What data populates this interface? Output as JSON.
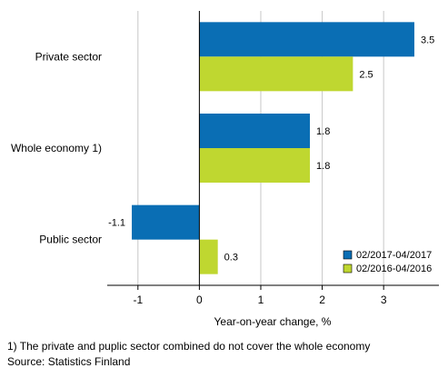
{
  "chart_data": {
    "type": "bar",
    "orientation": "horizontal",
    "categories": [
      "Private sector",
      "Whole economy 1)",
      "Public sector"
    ],
    "series": [
      {
        "name": "02/2017-04/2017",
        "color": "#0a6eb4",
        "values": [
          3.5,
          1.8,
          -1.1
        ]
      },
      {
        "name": "02/2016-04/2016",
        "color": "#bfd730",
        "values": [
          2.5,
          1.8,
          0.3
        ]
      }
    ],
    "data_labels": [
      [
        "3.5",
        "1.8",
        "-1.1"
      ],
      [
        "2.5",
        "1.8",
        "0.3"
      ]
    ],
    "xlabel": "Year-on-year change, %",
    "xlim": [
      -1.5,
      3.9
    ],
    "xticks": [
      -1,
      0,
      1,
      2,
      3
    ],
    "grid": true,
    "legend": "bottom-right"
  },
  "footnotes": [
    "1) The private and puplic sector combined do not cover the whole economy",
    "Source: Statistics Finland"
  ]
}
